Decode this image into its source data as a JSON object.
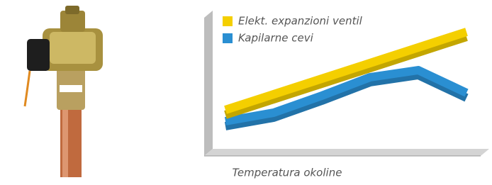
{
  "chart_data": {
    "type": "line",
    "x": [
      0,
      2,
      4,
      6,
      8,
      10
    ],
    "xlim": [
      0,
      10
    ],
    "ylim": [
      0,
      100
    ],
    "x_label": "Temperatura okoline",
    "legend": "top-left",
    "series": [
      {
        "name": "Elekt. expanzioni ventil",
        "color": "#f4cf00",
        "values": [
          30,
          41,
          52,
          63,
          74,
          85
        ]
      },
      {
        "name": "Kapilarne cevi",
        "color": "#2a8fd2",
        "values": [
          22,
          28,
          40,
          53,
          58,
          42
        ]
      }
    ]
  }
}
